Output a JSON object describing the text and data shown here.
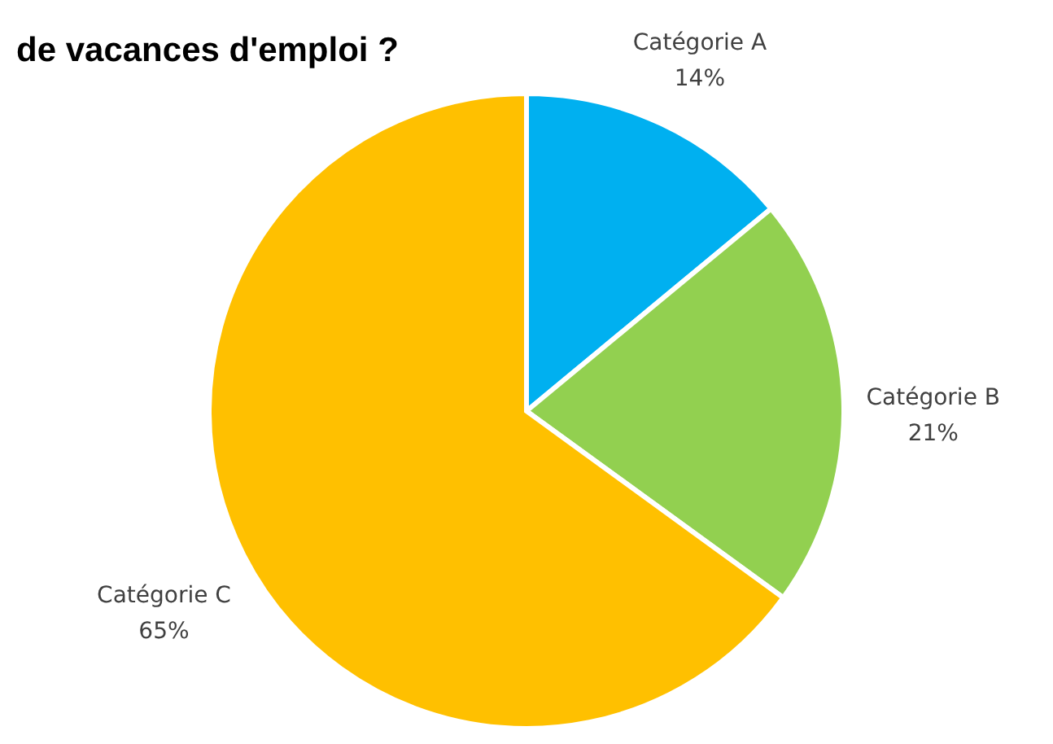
{
  "chart_data": {
    "type": "pie",
    "title": "de vacances d'emploi ?",
    "categories": [
      "Catégorie A",
      "Catégorie B",
      "Catégorie C"
    ],
    "values": [
      14,
      21,
      65
    ],
    "value_labels": [
      "14%",
      "21%",
      "65%"
    ],
    "colors": [
      "#00b0f0",
      "#92d050",
      "#ffc000"
    ]
  }
}
